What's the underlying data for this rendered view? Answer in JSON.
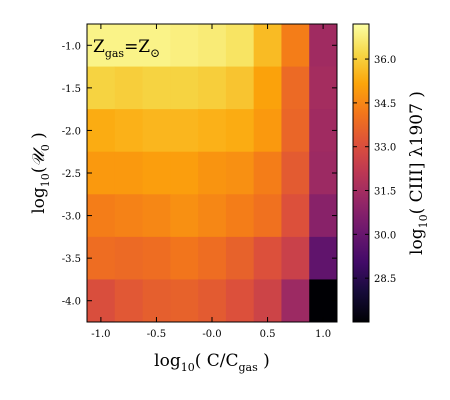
{
  "chart_data": {
    "type": "heatmap",
    "annotation": {
      "main": "Z",
      "sub": "gas",
      "eq": "=Z",
      "sun": "⊙"
    },
    "xlabel": {
      "prefix": "log",
      "base": "10",
      "body": "( C/C",
      "sub": "gas",
      "suffix": " )"
    },
    "ylabel": {
      "prefix": "log",
      "base": "10",
      "body": "(",
      "symbol": "𝒰",
      "sub": "0",
      "suffix": " )"
    },
    "colorbar_label": {
      "prefix": "log",
      "base": "10",
      "body": "( CIII] λ1907 )"
    },
    "x_ticks": [
      "-1.0",
      "-0.5",
      "-0.0",
      "0.5",
      "1.0"
    ],
    "x_tick_values": [
      -1.0,
      -0.5,
      0.0,
      0.5,
      1.0
    ],
    "y_ticks": [
      "-1.0",
      "-1.5",
      "-2.0",
      "-2.5",
      "-3.0",
      "-3.5",
      "-4.0"
    ],
    "y_tick_values": [
      -1.0,
      -1.5,
      -2.0,
      -2.5,
      -3.0,
      -3.5,
      -4.0
    ],
    "xlim": [
      -1.125,
      1.125
    ],
    "ylim": [
      -4.25,
      -0.75
    ],
    "x_centers": [
      -1.0,
      -0.75,
      -0.5,
      -0.25,
      0.0,
      0.25,
      0.5,
      0.75,
      1.0
    ],
    "y_centers": [
      -1.0,
      -1.5,
      -2.0,
      -2.5,
      -3.0,
      -3.5,
      -4.0
    ],
    "values": [
      [
        36.9,
        36.9,
        36.9,
        36.8,
        36.7,
        36.5,
        35.6,
        34.3,
        31.4
      ],
      [
        36.1,
        36.0,
        36.1,
        36.1,
        36.0,
        35.8,
        35.1,
        33.8,
        31.5
      ],
      [
        35.3,
        35.4,
        35.5,
        35.5,
        35.4,
        35.3,
        34.9,
        33.7,
        31.4
      ],
      [
        34.9,
        34.9,
        35.0,
        35.0,
        34.8,
        34.7,
        34.3,
        33.4,
        31.3
      ],
      [
        34.3,
        34.4,
        34.5,
        34.7,
        34.5,
        34.3,
        34.0,
        33.1,
        30.8
      ],
      [
        33.9,
        33.8,
        33.9,
        34.1,
        33.9,
        33.6,
        33.1,
        32.5,
        29.8
      ],
      [
        33.0,
        33.3,
        33.5,
        33.6,
        33.4,
        33.1,
        32.6,
        31.3,
        26.9
      ]
    ],
    "colorbar": {
      "colormap": "inferno",
      "vmin": 27.0,
      "vmax": 37.2,
      "ticks": [
        28.5,
        30.0,
        31.5,
        33.0,
        34.5,
        36.0
      ],
      "tick_labels": [
        "28.5",
        "30.0",
        "31.5",
        "33.0",
        "34.5",
        "36.0"
      ]
    },
    "grid": false
  }
}
